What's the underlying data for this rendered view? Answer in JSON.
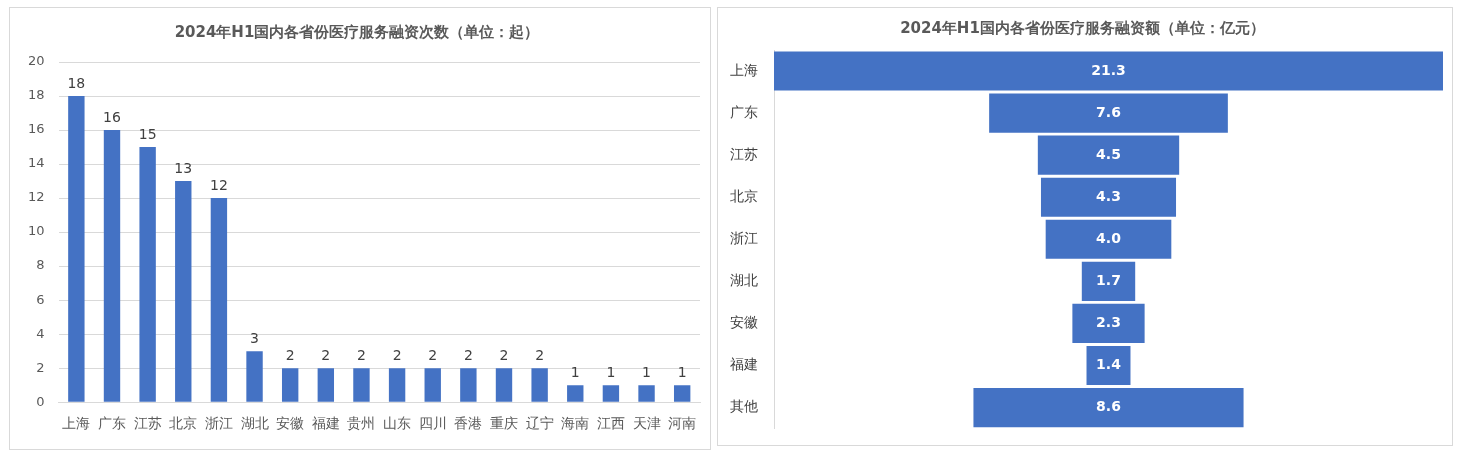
{
  "chart_data": [
    {
      "type": "bar",
      "title": "2024年H1国内各省份医疗服务融资次数（单位：起）",
      "categories": [
        "上海",
        "广东",
        "江苏",
        "北京",
        "浙江",
        "湖北",
        "安徽",
        "福建",
        "贵州",
        "山东",
        "四川",
        "香港",
        "重庆",
        "辽宁",
        "海南",
        "江西",
        "天津",
        "河南"
      ],
      "values": [
        18,
        16,
        15,
        13,
        12,
        3,
        2,
        2,
        2,
        2,
        2,
        2,
        2,
        2,
        1,
        1,
        1,
        1
      ],
      "color": "#4472c4",
      "ylim": [
        0,
        20
      ],
      "yticks": [
        0,
        2,
        4,
        6,
        8,
        10,
        12,
        14,
        16,
        18,
        20
      ],
      "grid": "y",
      "data_labels": true
    },
    {
      "type": "other",
      "title": "2024年H1国内各省份医疗服务融资额（单位：亿元）",
      "categories": [
        "上海",
        "广东",
        "江苏",
        "北京",
        "浙江",
        "湖北",
        "安徽",
        "福建",
        "其他"
      ],
      "values": [
        21.3,
        7.6,
        4.5,
        4.3,
        4.0,
        1.7,
        2.3,
        1.4,
        8.6
      ],
      "value_labels": [
        "21.3",
        "7.6",
        "4.5",
        "4.3",
        "4.0",
        "1.7",
        "2.3",
        "1.4",
        "8.6"
      ],
      "color": "#4472c4"
    }
  ]
}
